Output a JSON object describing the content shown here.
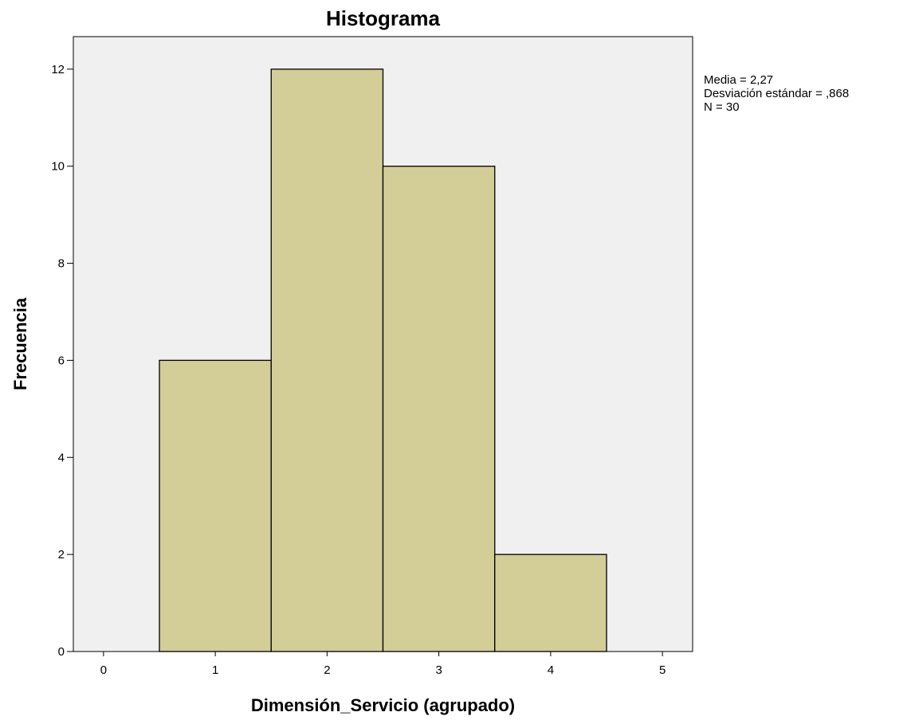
{
  "chart_data": {
    "type": "bar",
    "title": "Histograma",
    "xlabel": "Dimensión_Servicio (agrupado)",
    "ylabel": "Frecuencia",
    "bins": [
      {
        "center": 1,
        "value": 6
      },
      {
        "center": 2,
        "value": 12
      },
      {
        "center": 3,
        "value": 10
      },
      {
        "center": 4,
        "value": 2
      }
    ],
    "bin_width": 1,
    "xlim": [
      -0.27,
      5.27
    ],
    "ylim": [
      0,
      12.67
    ],
    "x_ticks": [
      "0",
      "1",
      "2",
      "3",
      "4",
      "5"
    ],
    "y_ticks": [
      "0",
      "2",
      "4",
      "6",
      "8",
      "10",
      "12"
    ],
    "grid": false,
    "bar_color": "#d3cd98",
    "plot_background": "#f0f0f0",
    "stats": [
      "Media = 2,27",
      "Desviación estándar = ,868",
      "N = 30"
    ]
  }
}
